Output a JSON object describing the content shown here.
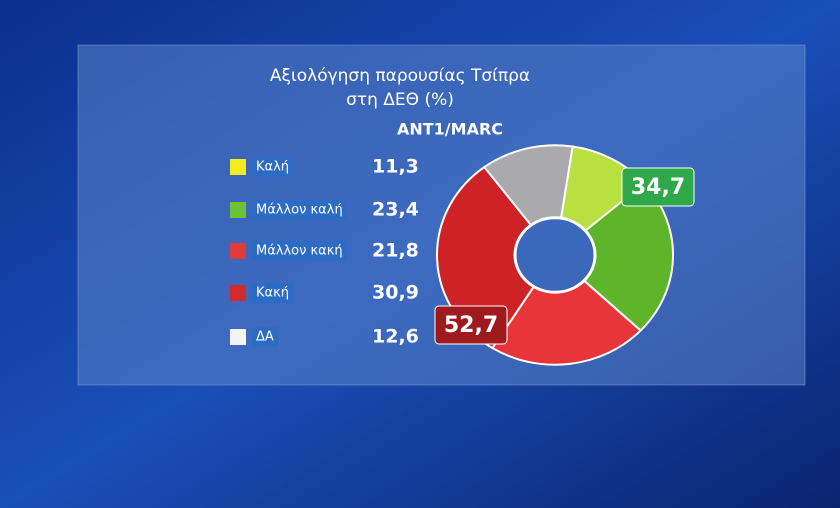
{
  "chart_data": {
    "type": "donut",
    "title": "Αξιολόγηση παρουσίας Τσίπρα",
    "subtitle": "στη ΔΕΘ (%)",
    "source": "ANT1/MARC",
    "categories": [
      "Καλή",
      "Μάλλον καλή",
      "Μάλλον κακή",
      "Κακή",
      "ΔΑ"
    ],
    "values": [
      11.3,
      23.4,
      21.8,
      30.9,
      12.6
    ],
    "value_labels": [
      "11,3",
      "23,4",
      "21,8",
      "30,9",
      "12,6"
    ],
    "colors": [
      "#b8e040",
      "#5fb52a",
      "#e8353a",
      "#cf2227",
      "#a9a9ae"
    ],
    "legend_colors": [
      "#f2ee1e",
      "#6cc236",
      "#e23a3a",
      "#d52a2a",
      "#f4f4f4"
    ],
    "annotations": [
      {
        "value": 34.7,
        "label": "34,7",
        "color": "#2fa84a"
      },
      {
        "value": 52.7,
        "label": "52,7",
        "color": "#9e1a1e"
      }
    ]
  }
}
